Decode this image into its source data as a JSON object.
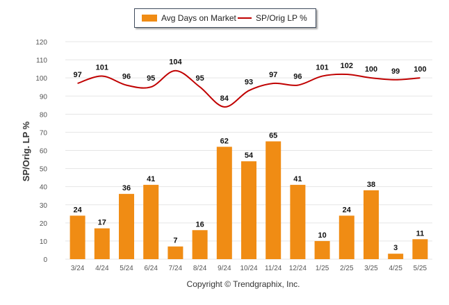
{
  "legend": {
    "bar_label": "Avg Days on Market",
    "line_label": "SP/Orig LP %"
  },
  "copyright": "Copyright © Trendgraphix, Inc.",
  "colors": {
    "bar": "#f08c14",
    "line": "#c00000",
    "grid": "#e5e5e5",
    "axis_text": "#555555"
  },
  "chart_data": {
    "type": "bar",
    "title": "",
    "xlabel": "",
    "ylabel": "SP/Orig. LP %",
    "ylim": [
      0,
      120
    ],
    "yticks": [
      0,
      10,
      20,
      30,
      40,
      50,
      60,
      70,
      80,
      90,
      100,
      110,
      120
    ],
    "grid": true,
    "legend_position": "top",
    "categories": [
      "3/24",
      "4/24",
      "5/24",
      "6/24",
      "7/24",
      "8/24",
      "9/24",
      "10/24",
      "11/24",
      "12/24",
      "1/25",
      "2/25",
      "3/25",
      "4/25",
      "5/25"
    ],
    "series": [
      {
        "name": "Avg Days on Market",
        "type": "bar",
        "values": [
          24,
          17,
          36,
          41,
          7,
          16,
          62,
          54,
          65,
          41,
          10,
          24,
          38,
          3,
          11
        ]
      },
      {
        "name": "SP/Orig LP %",
        "type": "line",
        "values": [
          97,
          101,
          96,
          95,
          104,
          95,
          84,
          93,
          97,
          96,
          101,
          102,
          100,
          99,
          100
        ]
      }
    ]
  }
}
